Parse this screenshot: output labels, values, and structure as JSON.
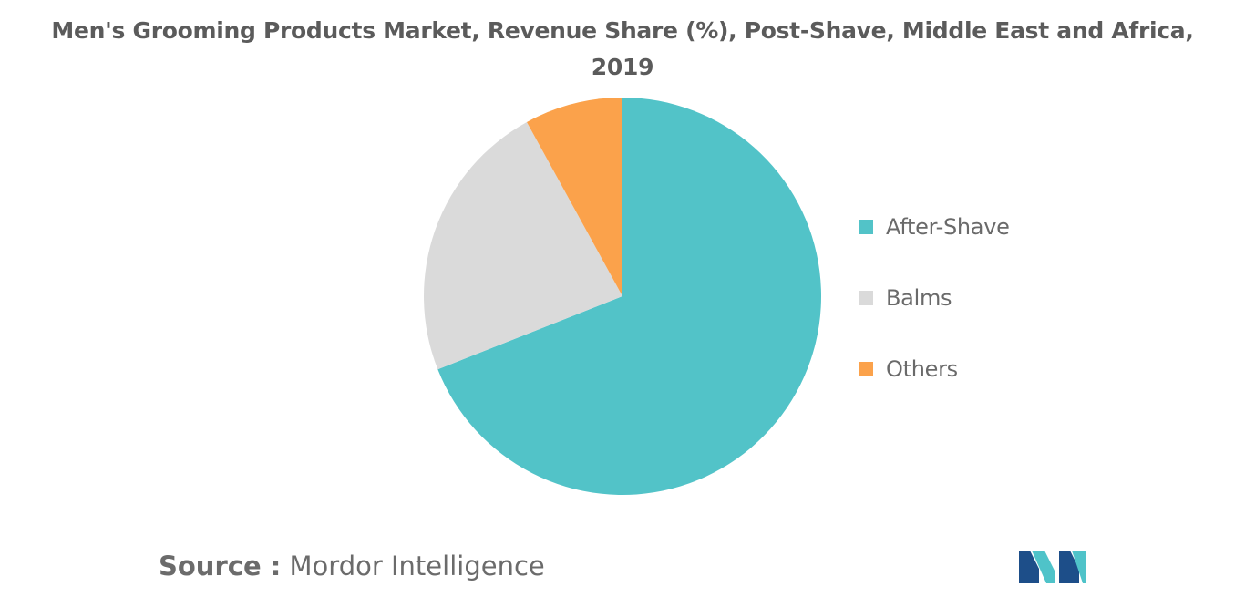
{
  "title_lines": [
    "Men's Grooming Products Market, Revenue Share (%), Post-Shave, Middle East and Africa,",
    "2019"
  ],
  "source": {
    "label": "Source :",
    "text": "Mordor Intelligence"
  },
  "logo": {
    "icon": "mordor-intelligence-logo-icon",
    "colors": [
      "#1d4e89",
      "#4fc3c9"
    ]
  },
  "chart_data": {
    "type": "pie",
    "title": "Men's Grooming Products Market, Revenue Share (%), Post-Shave, Middle East and Africa, 2019",
    "start_angle_deg": 0,
    "direction": "clockwise",
    "legend_position": "right",
    "slices": [
      {
        "label": "After-Shave",
        "value": 69,
        "color": "#52c3c8"
      },
      {
        "label": "Balms",
        "value": 23,
        "color": "#dadada"
      },
      {
        "label": "Others",
        "value": 8,
        "color": "#fba24b"
      }
    ]
  }
}
